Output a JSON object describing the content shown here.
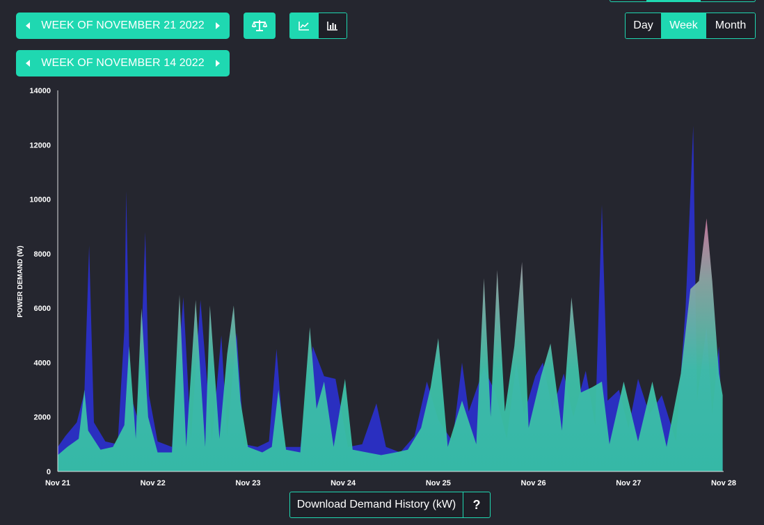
{
  "nav": {
    "current_week": "WEEK OF NOVEMBER 21 2022",
    "compare_week": "WEEK OF NOVEMBER 14 2022"
  },
  "icons": {
    "compare": "balance-scale-icon",
    "line_chart": "line-chart-icon",
    "bar_chart": "bar-chart-icon",
    "prev": "caret-left-icon",
    "next": "caret-right-icon"
  },
  "period": {
    "options": [
      "Day",
      "Week",
      "Month"
    ],
    "selected": "Week"
  },
  "download": {
    "label": "Download Demand History (kW)",
    "help": "?"
  },
  "colors": {
    "accent": "#1fd8b1",
    "background": "#25262f",
    "series_compare": "#2a2fc0",
    "series_current": "#3cc7ac"
  },
  "chart_data": {
    "type": "area",
    "ylabel": "POWER DEMAND (W)",
    "xlabel": "",
    "ylim": [
      0,
      14000
    ],
    "y_ticks": [
      "0",
      "2000",
      "4000",
      "6000",
      "8000",
      "10000",
      "12000",
      "14000"
    ],
    "x_ticks": [
      "Nov 21",
      "Nov 22",
      "Nov 23",
      "Nov 24",
      "Nov 25",
      "Nov 26",
      "Nov 27",
      "Nov 28"
    ],
    "grid": false,
    "series": [
      {
        "color": "#2a2fc0",
        "points": [
          [
            0.0,
            900
          ],
          [
            0.08,
            1300
          ],
          [
            0.2,
            1800
          ],
          [
            0.28,
            2900
          ],
          [
            0.33,
            8300
          ],
          [
            0.38,
            1800
          ],
          [
            0.5,
            1100
          ],
          [
            0.63,
            1000
          ],
          [
            0.7,
            5200
          ],
          [
            0.72,
            10300
          ],
          [
            0.76,
            2900
          ],
          [
            0.85,
            1800
          ],
          [
            0.92,
            8800
          ],
          [
            0.96,
            2800
          ],
          [
            1.05,
            1100
          ],
          [
            1.2,
            900
          ],
          [
            1.32,
            6400
          ],
          [
            1.4,
            1200
          ],
          [
            1.5,
            6300
          ],
          [
            1.62,
            1100
          ],
          [
            1.72,
            5000
          ],
          [
            1.78,
            1300
          ],
          [
            1.88,
            5100
          ],
          [
            1.96,
            1000
          ],
          [
            2.1,
            900
          ],
          [
            2.22,
            1100
          ],
          [
            2.3,
            4500
          ],
          [
            2.38,
            900
          ],
          [
            2.55,
            900
          ],
          [
            2.68,
            4600
          ],
          [
            2.8,
            3500
          ],
          [
            2.92,
            3400
          ],
          [
            3.05,
            900
          ],
          [
            3.2,
            1000
          ],
          [
            3.35,
            2500
          ],
          [
            3.45,
            900
          ],
          [
            3.6,
            700
          ],
          [
            3.75,
            1300
          ],
          [
            3.88,
            3300
          ],
          [
            4.0,
            1900
          ],
          [
            4.15,
            1100
          ],
          [
            4.25,
            4000
          ],
          [
            4.32,
            2200
          ],
          [
            4.48,
            3800
          ],
          [
            4.6,
            2900
          ],
          [
            4.72,
            1200
          ],
          [
            4.82,
            4000
          ],
          [
            4.9,
            2100
          ],
          [
            5.02,
            3500
          ],
          [
            5.1,
            4000
          ],
          [
            5.2,
            2300
          ],
          [
            5.32,
            3600
          ],
          [
            5.42,
            2000
          ],
          [
            5.55,
            3700
          ],
          [
            5.65,
            1700
          ],
          [
            5.72,
            9800
          ],
          [
            5.78,
            2600
          ],
          [
            5.9,
            3000
          ],
          [
            6.0,
            1600
          ],
          [
            6.1,
            3400
          ],
          [
            6.22,
            2100
          ],
          [
            6.35,
            2800
          ],
          [
            6.5,
            1100
          ],
          [
            6.6,
            6000
          ],
          [
            6.68,
            12700
          ],
          [
            6.72,
            2600
          ],
          [
            6.82,
            5300
          ],
          [
            6.88,
            2100
          ],
          [
            6.95,
            4600
          ],
          [
            6.99,
            800
          ]
        ]
      },
      {
        "color": "#3cc7ac",
        "points": [
          [
            0.0,
            600
          ],
          [
            0.1,
            900
          ],
          [
            0.22,
            1200
          ],
          [
            0.28,
            3000
          ],
          [
            0.32,
            1500
          ],
          [
            0.45,
            800
          ],
          [
            0.58,
            900
          ],
          [
            0.7,
            1700
          ],
          [
            0.75,
            4600
          ],
          [
            0.82,
            1200
          ],
          [
            0.88,
            6000
          ],
          [
            0.95,
            2000
          ],
          [
            1.05,
            700
          ],
          [
            1.2,
            700
          ],
          [
            1.28,
            6500
          ],
          [
            1.35,
            900
          ],
          [
            1.45,
            6300
          ],
          [
            1.55,
            900
          ],
          [
            1.6,
            6100
          ],
          [
            1.7,
            1200
          ],
          [
            1.78,
            4300
          ],
          [
            1.85,
            6100
          ],
          [
            1.92,
            2600
          ],
          [
            2.0,
            900
          ],
          [
            2.15,
            700
          ],
          [
            2.25,
            900
          ],
          [
            2.32,
            3000
          ],
          [
            2.4,
            800
          ],
          [
            2.55,
            700
          ],
          [
            2.65,
            5300
          ],
          [
            2.72,
            2300
          ],
          [
            2.8,
            3300
          ],
          [
            2.9,
            900
          ],
          [
            3.02,
            3400
          ],
          [
            3.1,
            800
          ],
          [
            3.25,
            700
          ],
          [
            3.4,
            600
          ],
          [
            3.55,
            700
          ],
          [
            3.68,
            800
          ],
          [
            3.82,
            1600
          ],
          [
            3.92,
            3100
          ],
          [
            4.0,
            4900
          ],
          [
            4.1,
            900
          ],
          [
            4.25,
            2600
          ],
          [
            4.4,
            1000
          ],
          [
            4.48,
            7100
          ],
          [
            4.55,
            2000
          ],
          [
            4.62,
            7400
          ],
          [
            4.7,
            2200
          ],
          [
            4.8,
            4600
          ],
          [
            4.88,
            7700
          ],
          [
            4.95,
            1600
          ],
          [
            5.08,
            3500
          ],
          [
            5.18,
            4700
          ],
          [
            5.3,
            1500
          ],
          [
            5.4,
            6400
          ],
          [
            5.5,
            2900
          ],
          [
            5.62,
            3100
          ],
          [
            5.72,
            3300
          ],
          [
            5.8,
            1000
          ],
          [
            5.95,
            3300
          ],
          [
            6.1,
            1100
          ],
          [
            6.25,
            3300
          ],
          [
            6.4,
            900
          ],
          [
            6.55,
            3600
          ],
          [
            6.65,
            6700
          ],
          [
            6.74,
            7000
          ],
          [
            6.82,
            9300
          ],
          [
            6.88,
            7000
          ],
          [
            6.95,
            3600
          ],
          [
            6.99,
            2800
          ]
        ]
      }
    ]
  }
}
